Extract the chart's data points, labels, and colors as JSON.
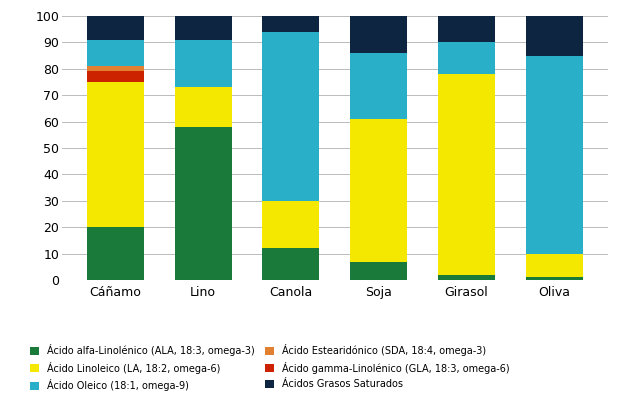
{
  "categories": [
    "Cáñamo",
    "Lino",
    "Canola",
    "Soja",
    "Girasol",
    "Oliva"
  ],
  "series": {
    "ALA": [
      20,
      58,
      12,
      7,
      2,
      1
    ],
    "LA": [
      55,
      15,
      18,
      54,
      76,
      9
    ],
    "GLA": [
      4,
      0,
      0,
      0,
      0,
      0
    ],
    "SDA": [
      2,
      0,
      0,
      0,
      0,
      0
    ],
    "Oleic": [
      10,
      18,
      64,
      25,
      12,
      75
    ],
    "Sat": [
      9,
      9,
      6,
      14,
      10,
      15
    ]
  },
  "colors": {
    "ALA": "#1a7a3a",
    "LA": "#f5e800",
    "GLA": "#cc2200",
    "SDA": "#e08030",
    "Oleic": "#29b0c8",
    "Sat": "#0d2540"
  },
  "labels": {
    "ALA": "Ácido alfa-Linolénico (ALA, 18:3, omega-3)",
    "LA": "Ácido Linoleico (LA, 18:2, omega-6)",
    "GLA": "Ácido gamma-Linolénico (GLA, 18:3, omega-6)",
    "SDA": "Ácido Estearidónico (SDA, 18:4, omega-3)",
    "Oleic": "Ácido Oleico (18:1, omega-9)",
    "Sat": "Ácidos Grasos Saturados"
  },
  "legend_left": [
    "ALA",
    "LA",
    "Oleic"
  ],
  "legend_right": [
    "SDA",
    "GLA",
    "Sat"
  ],
  "ylim": [
    0,
    100
  ],
  "yticks": [
    0,
    10,
    20,
    30,
    40,
    50,
    60,
    70,
    80,
    90,
    100
  ],
  "bar_width": 0.65,
  "figsize": [
    6.2,
    4.0
  ],
  "dpi": 100,
  "background": "#ffffff",
  "grid_color": "#bbbbbb",
  "tick_fontsize": 9,
  "legend_fontsize": 7.0
}
